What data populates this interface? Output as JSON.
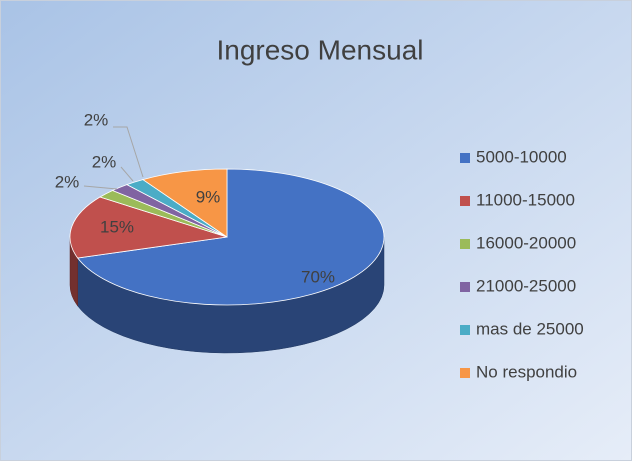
{
  "chart_data": {
    "type": "pie",
    "title": "Ingreso Mensual",
    "categories": [
      "5000-10000",
      "11000-15000",
      "16000-20000",
      "21000-25000",
      "mas de 25000",
      "No respondio"
    ],
    "values": [
      70,
      15,
      2,
      2,
      2,
      9
    ],
    "value_labels": [
      "70%",
      "15%",
      "2%",
      "2%",
      "2%",
      "9%"
    ],
    "colors": [
      "#4472c4",
      "#c0504d",
      "#9bbb59",
      "#8064a2",
      "#4bacc6",
      "#f79646"
    ],
    "legend": "right"
  }
}
